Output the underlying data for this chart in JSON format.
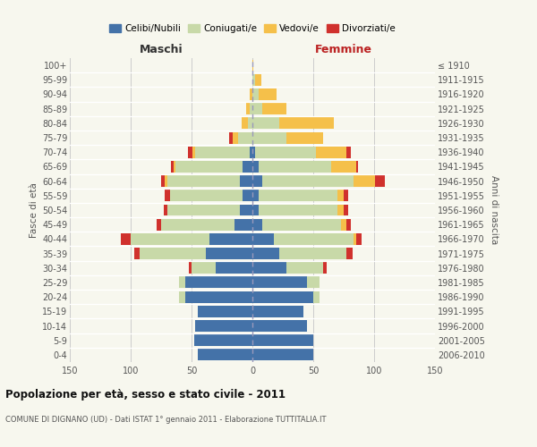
{
  "age_groups": [
    "0-4",
    "5-9",
    "10-14",
    "15-19",
    "20-24",
    "25-29",
    "30-34",
    "35-39",
    "40-44",
    "45-49",
    "50-54",
    "55-59",
    "60-64",
    "65-69",
    "70-74",
    "75-79",
    "80-84",
    "85-89",
    "90-94",
    "95-99",
    "100+"
  ],
  "birth_years": [
    "2006-2010",
    "2001-2005",
    "1996-2000",
    "1991-1995",
    "1986-1990",
    "1981-1985",
    "1976-1980",
    "1971-1975",
    "1966-1970",
    "1961-1965",
    "1956-1960",
    "1951-1955",
    "1946-1950",
    "1941-1945",
    "1936-1940",
    "1931-1935",
    "1926-1930",
    "1921-1925",
    "1916-1920",
    "1911-1915",
    "≤ 1910"
  ],
  "males": {
    "celibe": [
      45,
      48,
      47,
      45,
      55,
      55,
      30,
      38,
      35,
      15,
      10,
      8,
      10,
      8,
      2,
      0,
      0,
      0,
      0,
      0,
      0
    ],
    "coniugato": [
      0,
      0,
      0,
      0,
      5,
      5,
      20,
      55,
      65,
      60,
      60,
      60,
      60,
      55,
      45,
      12,
      4,
      2,
      0,
      0,
      0
    ],
    "vedovo": [
      0,
      0,
      0,
      0,
      0,
      0,
      0,
      0,
      0,
      0,
      0,
      0,
      2,
      2,
      2,
      4,
      5,
      3,
      2,
      0,
      0
    ],
    "divorziato": [
      0,
      0,
      0,
      0,
      0,
      0,
      2,
      4,
      8,
      4,
      3,
      4,
      3,
      2,
      4,
      3,
      0,
      0,
      0,
      0,
      0
    ]
  },
  "females": {
    "nubile": [
      50,
      50,
      45,
      42,
      50,
      45,
      28,
      22,
      18,
      8,
      5,
      5,
      8,
      5,
      2,
      0,
      0,
      0,
      0,
      0,
      0
    ],
    "coniugata": [
      0,
      0,
      0,
      0,
      5,
      10,
      30,
      55,
      65,
      65,
      65,
      65,
      75,
      60,
      50,
      28,
      22,
      8,
      5,
      2,
      0
    ],
    "vedova": [
      0,
      0,
      0,
      0,
      0,
      0,
      0,
      0,
      2,
      4,
      5,
      5,
      18,
      20,
      25,
      30,
      45,
      20,
      15,
      5,
      1
    ],
    "divorziata": [
      0,
      0,
      0,
      0,
      0,
      0,
      3,
      5,
      5,
      4,
      4,
      4,
      8,
      2,
      4,
      0,
      0,
      0,
      0,
      0,
      0
    ]
  },
  "colors": {
    "celibe": "#4472a8",
    "coniugato": "#c8d9a8",
    "vedovo": "#f5c04a",
    "divorziato": "#d0312d"
  },
  "legend_labels": [
    "Celibi/Nubili",
    "Coniugati/e",
    "Vedovi/e",
    "Divorziati/e"
  ],
  "xlim": 150,
  "title": "Popolazione per età, sesso e stato civile - 2011",
  "subtitle": "COMUNE DI DIGNANO (UD) - Dati ISTAT 1° gennaio 2011 - Elaborazione TUTTITALIA.IT",
  "ylabel_left": "Fasce di età",
  "ylabel_right": "Anni di nascita",
  "xlabel_left": "Maschi",
  "xlabel_right": "Femmine",
  "bg_color": "#f7f7ee"
}
